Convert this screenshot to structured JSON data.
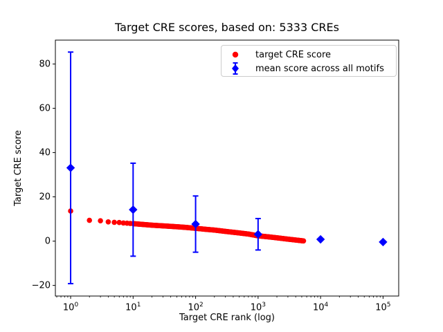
{
  "chart_data": {
    "type": "scatter",
    "title": "Target CRE scores, based on: 5333 CREs",
    "xlabel": "Target CRE rank (log)",
    "ylabel": "Target CRE score",
    "x_scale": "log",
    "grid": false,
    "legend_position": "upper right",
    "xlim": [
      0.57,
      178000
    ],
    "ylim": [
      -24.8,
      90.8
    ],
    "x_ticks": [
      {
        "value": 1,
        "base": "10",
        "exp": "0"
      },
      {
        "value": 10,
        "base": "10",
        "exp": "1"
      },
      {
        "value": 100,
        "base": "10",
        "exp": "2"
      },
      {
        "value": 1000,
        "base": "10",
        "exp": "3"
      },
      {
        "value": 10000,
        "base": "10",
        "exp": "4"
      },
      {
        "value": 100000,
        "base": "10",
        "exp": "5"
      }
    ],
    "y_ticks": [
      {
        "value": -20,
        "label": "−20"
      },
      {
        "value": 0,
        "label": "0"
      },
      {
        "value": 20,
        "label": "20"
      },
      {
        "value": 40,
        "label": "40"
      },
      {
        "value": 60,
        "label": "60"
      },
      {
        "value": 80,
        "label": "80"
      }
    ],
    "series": [
      {
        "name": "target CRE score",
        "type": "scatter",
        "marker": "circle",
        "color": "#ff0000",
        "n_total_points": 5333,
        "points": [
          [
            1,
            13.6
          ],
          [
            2,
            9.4
          ],
          [
            3,
            9.2
          ],
          [
            4,
            8.7
          ],
          [
            5,
            8.5
          ],
          [
            6,
            8.4
          ],
          [
            7,
            8.2
          ],
          [
            8,
            8.1
          ],
          [
            9,
            8.0
          ],
          [
            10,
            7.9
          ],
          [
            15,
            7.5
          ],
          [
            20,
            7.2
          ],
          [
            30,
            6.9
          ],
          [
            50,
            6.5
          ],
          [
            70,
            6.2
          ],
          [
            100,
            5.8
          ],
          [
            150,
            5.3
          ],
          [
            200,
            5.0
          ],
          [
            300,
            4.4
          ],
          [
            500,
            3.7
          ],
          [
            700,
            3.2
          ],
          [
            1000,
            2.4
          ],
          [
            1500,
            1.9
          ],
          [
            2000,
            1.5
          ],
          [
            3000,
            0.9
          ],
          [
            4000,
            0.5
          ],
          [
            5333,
            0.1
          ]
        ]
      },
      {
        "name": "mean score across all motifs",
        "type": "errorbar",
        "marker": "diamond",
        "color": "#0000ff",
        "x": [
          1,
          10,
          100,
          1000,
          10000,
          100000
        ],
        "y": [
          33.1,
          14.2,
          7.7,
          3.1,
          0.8,
          -0.4
        ],
        "yerr": [
          52.3,
          21.0,
          12.7,
          7.1,
          0,
          0
        ]
      }
    ]
  }
}
